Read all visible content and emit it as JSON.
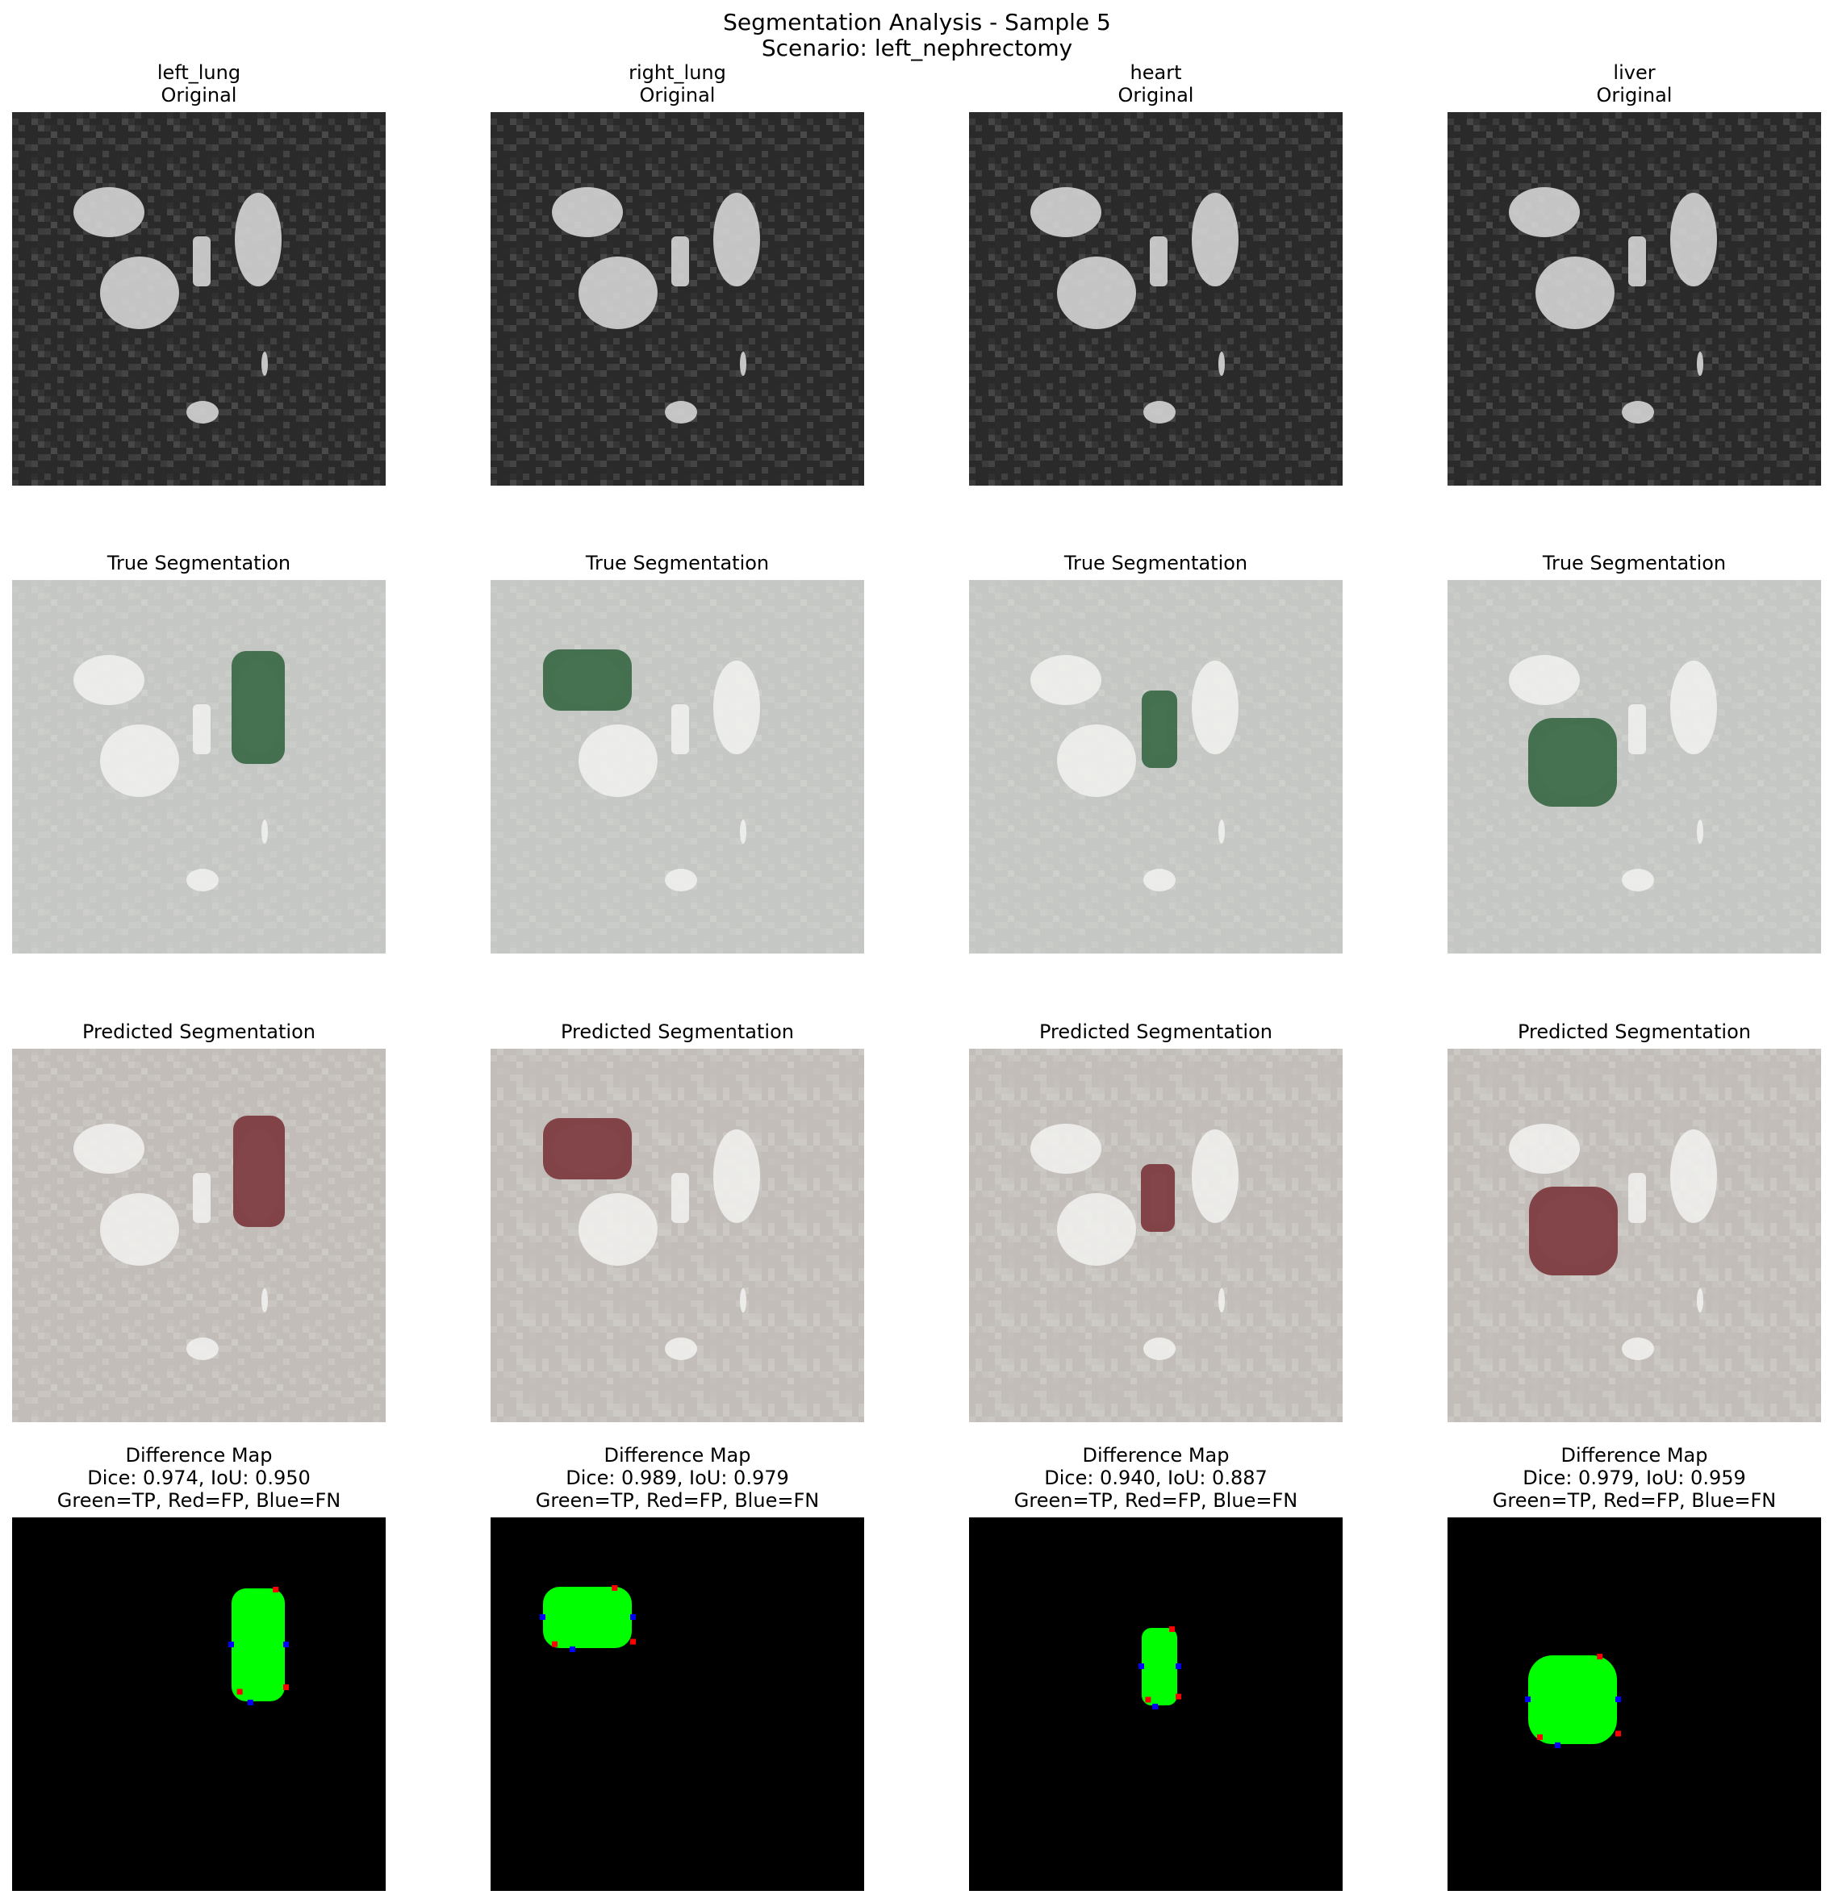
{
  "figure": {
    "title_line1": "Segmentation Analysis - Sample 5",
    "title_line2": "Scenario: left_nephrectomy"
  },
  "columns": [
    {
      "organ": "left_lung",
      "original_label": "Original",
      "true_label": "True Segmentation",
      "pred_label": "Predicted Segmentation",
      "diff_label": "Difference Map",
      "metrics": "Dice: 0.974, IoU: 0.950",
      "legend": "Green=TP, Red=FP, Blue=FN"
    },
    {
      "organ": "right_lung",
      "original_label": "Original",
      "true_label": "True Segmentation",
      "pred_label": "Predicted Segmentation",
      "diff_label": "Difference Map",
      "metrics": "Dice: 0.989, IoU: 0.979",
      "legend": "Green=TP, Red=FP, Blue=FN"
    },
    {
      "organ": "heart",
      "original_label": "Original",
      "true_label": "True Segmentation",
      "pred_label": "Predicted Segmentation",
      "diff_label": "Difference Map",
      "metrics": "Dice: 0.940, IoU: 0.887",
      "legend": "Green=TP, Red=FP, Blue=FN"
    },
    {
      "organ": "liver",
      "original_label": "Original",
      "true_label": "True Segmentation",
      "pred_label": "Predicted Segmentation",
      "diff_label": "Difference Map",
      "metrics": "Dice: 0.979, IoU: 0.959",
      "legend": "Green=TP, Red=FP, Blue=FN"
    }
  ],
  "colors": {
    "scan_background": "#2a2a2a",
    "organ_bright": "#d9d9d9",
    "overlay_background": "#c4c7c3",
    "true_mask": "#3d6b49",
    "pred_mask": "#7d3c40",
    "tp": "#00ff00",
    "fp": "#ff0000",
    "fn": "#0000ff",
    "diff_background": "#000000"
  }
}
